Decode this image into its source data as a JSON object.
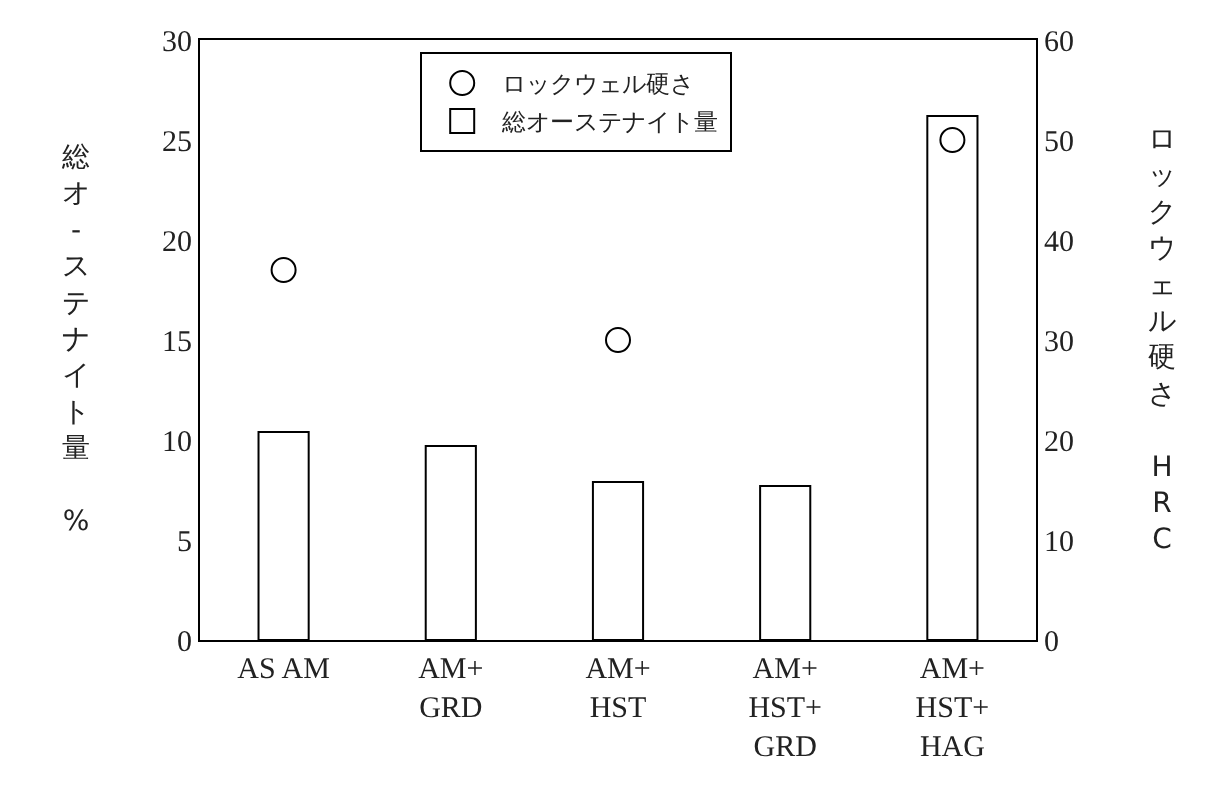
{
  "chart_data": {
    "type": "bar",
    "categories": [
      "AS AM",
      "AM+\nGRD",
      "AM+\nHST",
      "AM+\nHST+\nGRD",
      "AM+\nHST+\nHAG"
    ],
    "series": [
      {
        "name": "ロックウェル硬さ",
        "type": "scatter",
        "axis": "y2",
        "marker": "circle",
        "color": "#000000",
        "values": [
          37,
          null,
          30,
          null,
          50
        ]
      },
      {
        "name": "総オーステナイト量",
        "color": "#ffffff",
        "values": [
          10.4,
          9.7,
          7.9,
          7.7,
          26.2
        ]
      }
    ],
    "ylabel": "総オ-ステナイト量 %",
    "y2label": "ロックウェル硬さ HRC",
    "ylim": [
      0,
      30
    ],
    "yticks": [
      0,
      5,
      10,
      15,
      20,
      25,
      30
    ],
    "y2lim": [
      0,
      60
    ],
    "y2ticks": [
      0,
      10,
      20,
      30,
      40,
      50,
      60
    ],
    "grid": false,
    "legend": "top"
  }
}
